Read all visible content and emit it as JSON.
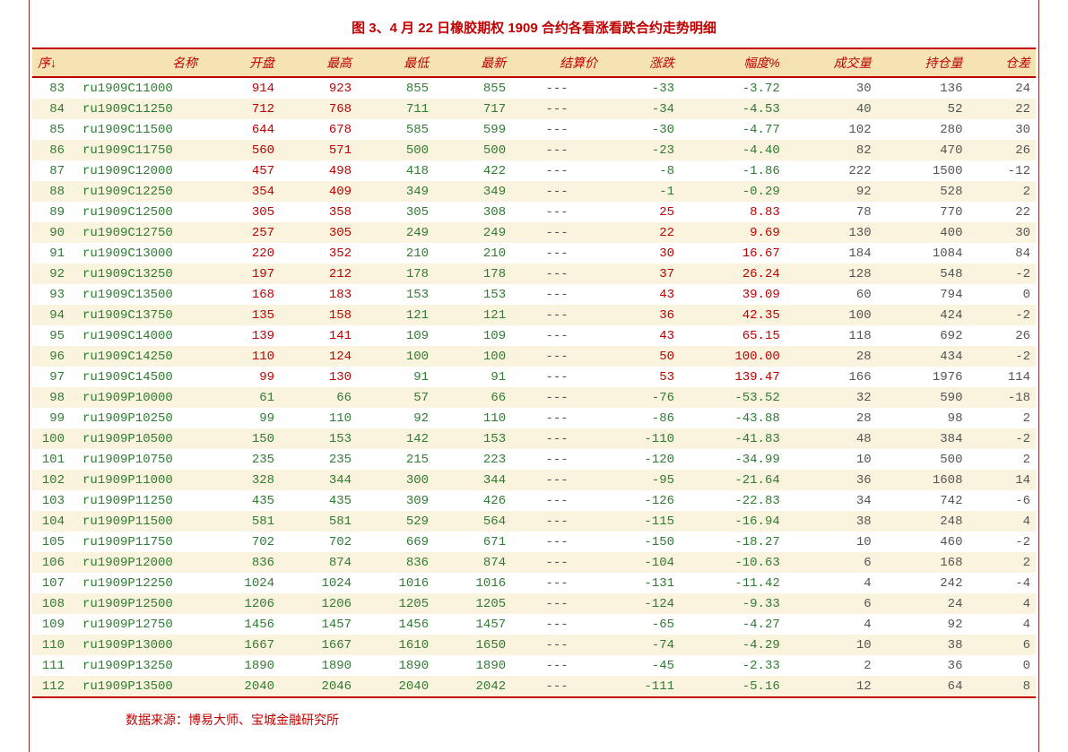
{
  "title": "图 3、4 月 22 日橡胶期权 1909 合约各看涨看跌合约走势明细",
  "source": "数据来源：博易大师、宝城金融研究所",
  "colors": {
    "title": "#c00000",
    "header_bg": "#f5e3b3",
    "header_text": "#c00000",
    "border": "#c00000",
    "row_odd": "#ffffff",
    "row_even": "#faf3dd",
    "up": "#c00000",
    "down": "#2e7d32",
    "neutral": "#555555",
    "outer_border": "#8b2a2a"
  },
  "columns": [
    "序↓",
    "名称",
    "开盘",
    "最高",
    "最低",
    "最新",
    "结算价",
    "涨跌",
    "幅度%",
    "成交量",
    "持仓量",
    "仓差"
  ],
  "column_align": [
    "left",
    "right",
    "right",
    "right",
    "right",
    "right",
    "right",
    "right",
    "right",
    "right",
    "right",
    "right"
  ],
  "rows": [
    {
      "seq": 83,
      "name": "ru1909C11000",
      "open": 914,
      "high": 923,
      "low": 855,
      "last": 855,
      "settle": "---",
      "chg": -33,
      "pct": -3.72,
      "vol": 30,
      "oi": 136,
      "oichg": 24,
      "oc": "r",
      "hc": "r",
      "lc": "g",
      "nc": "g"
    },
    {
      "seq": 84,
      "name": "ru1909C11250",
      "open": 712,
      "high": 768,
      "low": 711,
      "last": 717,
      "settle": "---",
      "chg": -34,
      "pct": -4.53,
      "vol": 40,
      "oi": 52,
      "oichg": 22,
      "oc": "r",
      "hc": "r",
      "lc": "g",
      "nc": "g"
    },
    {
      "seq": 85,
      "name": "ru1909C11500",
      "open": 644,
      "high": 678,
      "low": 585,
      "last": 599,
      "settle": "---",
      "chg": -30,
      "pct": -4.77,
      "vol": 102,
      "oi": 280,
      "oichg": 30,
      "oc": "r",
      "hc": "r",
      "lc": "g",
      "nc": "g"
    },
    {
      "seq": 86,
      "name": "ru1909C11750",
      "open": 560,
      "high": 571,
      "low": 500,
      "last": 500,
      "settle": "---",
      "chg": -23,
      "pct": -4.4,
      "vol": 82,
      "oi": 470,
      "oichg": 26,
      "oc": "r",
      "hc": "r",
      "lc": "g",
      "nc": "g"
    },
    {
      "seq": 87,
      "name": "ru1909C12000",
      "open": 457,
      "high": 498,
      "low": 418,
      "last": 422,
      "settle": "---",
      "chg": -8,
      "pct": -1.86,
      "vol": 222,
      "oi": 1500,
      "oichg": -12,
      "oc": "r",
      "hc": "r",
      "lc": "g",
      "nc": "g"
    },
    {
      "seq": 88,
      "name": "ru1909C12250",
      "open": 354,
      "high": 409,
      "low": 349,
      "last": 349,
      "settle": "---",
      "chg": -1,
      "pct": -0.29,
      "vol": 92,
      "oi": 528,
      "oichg": 2,
      "oc": "r",
      "hc": "r",
      "lc": "g",
      "nc": "g"
    },
    {
      "seq": 89,
      "name": "ru1909C12500",
      "open": 305,
      "high": 358,
      "low": 305,
      "last": 308,
      "settle": "---",
      "chg": 25,
      "pct": 8.83,
      "vol": 78,
      "oi": 770,
      "oichg": 22,
      "oc": "r",
      "hc": "r",
      "lc": "g",
      "nc": "g"
    },
    {
      "seq": 90,
      "name": "ru1909C12750",
      "open": 257,
      "high": 305,
      "low": 249,
      "last": 249,
      "settle": "---",
      "chg": 22,
      "pct": 9.69,
      "vol": 130,
      "oi": 400,
      "oichg": 30,
      "oc": "r",
      "hc": "r",
      "lc": "g",
      "nc": "g"
    },
    {
      "seq": 91,
      "name": "ru1909C13000",
      "open": 220,
      "high": 352,
      "low": 210,
      "last": 210,
      "settle": "---",
      "chg": 30,
      "pct": 16.67,
      "vol": 184,
      "oi": 1084,
      "oichg": 84,
      "oc": "r",
      "hc": "r",
      "lc": "g",
      "nc": "g"
    },
    {
      "seq": 92,
      "name": "ru1909C13250",
      "open": 197,
      "high": 212,
      "low": 178,
      "last": 178,
      "settle": "---",
      "chg": 37,
      "pct": 26.24,
      "vol": 128,
      "oi": 548,
      "oichg": -2,
      "oc": "r",
      "hc": "r",
      "lc": "g",
      "nc": "g"
    },
    {
      "seq": 93,
      "name": "ru1909C13500",
      "open": 168,
      "high": 183,
      "low": 153,
      "last": 153,
      "settle": "---",
      "chg": 43,
      "pct": 39.09,
      "vol": 60,
      "oi": 794,
      "oichg": 0,
      "oc": "r",
      "hc": "r",
      "lc": "g",
      "nc": "g"
    },
    {
      "seq": 94,
      "name": "ru1909C13750",
      "open": 135,
      "high": 158,
      "low": 121,
      "last": 121,
      "settle": "---",
      "chg": 36,
      "pct": 42.35,
      "vol": 100,
      "oi": 424,
      "oichg": -2,
      "oc": "r",
      "hc": "r",
      "lc": "g",
      "nc": "g"
    },
    {
      "seq": 95,
      "name": "ru1909C14000",
      "open": 139,
      "high": 141,
      "low": 109,
      "last": 109,
      "settle": "---",
      "chg": 43,
      "pct": 65.15,
      "vol": 118,
      "oi": 692,
      "oichg": 26,
      "oc": "r",
      "hc": "r",
      "lc": "g",
      "nc": "g"
    },
    {
      "seq": 96,
      "name": "ru1909C14250",
      "open": 110,
      "high": 124,
      "low": 100,
      "last": 100,
      "settle": "---",
      "chg": 50,
      "pct": 100.0,
      "vol": 28,
      "oi": 434,
      "oichg": -2,
      "oc": "r",
      "hc": "r",
      "lc": "g",
      "nc": "g"
    },
    {
      "seq": 97,
      "name": "ru1909C14500",
      "open": 99,
      "high": 130,
      "low": 91,
      "last": 91,
      "settle": "---",
      "chg": 53,
      "pct": 139.47,
      "vol": 166,
      "oi": 1976,
      "oichg": 114,
      "oc": "r",
      "hc": "r",
      "lc": "g",
      "nc": "g"
    },
    {
      "seq": 98,
      "name": "ru1909P10000",
      "open": 61,
      "high": 66,
      "low": 57,
      "last": 66,
      "settle": "---",
      "chg": -76,
      "pct": -53.52,
      "vol": 32,
      "oi": 590,
      "oichg": -18,
      "oc": "g",
      "hc": "g",
      "lc": "g",
      "nc": "g"
    },
    {
      "seq": 99,
      "name": "ru1909P10250",
      "open": 99,
      "high": 110,
      "low": 92,
      "last": 110,
      "settle": "---",
      "chg": -86,
      "pct": -43.88,
      "vol": 28,
      "oi": 98,
      "oichg": 2,
      "oc": "g",
      "hc": "g",
      "lc": "g",
      "nc": "g"
    },
    {
      "seq": 100,
      "name": "ru1909P10500",
      "open": 150,
      "high": 153,
      "low": 142,
      "last": 153,
      "settle": "---",
      "chg": -110,
      "pct": -41.83,
      "vol": 48,
      "oi": 384,
      "oichg": -2,
      "oc": "g",
      "hc": "g",
      "lc": "g",
      "nc": "g"
    },
    {
      "seq": 101,
      "name": "ru1909P10750",
      "open": 235,
      "high": 235,
      "low": 215,
      "last": 223,
      "settle": "---",
      "chg": -120,
      "pct": -34.99,
      "vol": 10,
      "oi": 500,
      "oichg": 2,
      "oc": "g",
      "hc": "g",
      "lc": "g",
      "nc": "g"
    },
    {
      "seq": 102,
      "name": "ru1909P11000",
      "open": 328,
      "high": 344,
      "low": 300,
      "last": 344,
      "settle": "---",
      "chg": -95,
      "pct": -21.64,
      "vol": 36,
      "oi": 1608,
      "oichg": 14,
      "oc": "g",
      "hc": "g",
      "lc": "g",
      "nc": "g"
    },
    {
      "seq": 103,
      "name": "ru1909P11250",
      "open": 435,
      "high": 435,
      "low": 309,
      "last": 426,
      "settle": "---",
      "chg": -126,
      "pct": -22.83,
      "vol": 34,
      "oi": 742,
      "oichg": -6,
      "oc": "g",
      "hc": "g",
      "lc": "g",
      "nc": "g"
    },
    {
      "seq": 104,
      "name": "ru1909P11500",
      "open": 581,
      "high": 581,
      "low": 529,
      "last": 564,
      "settle": "---",
      "chg": -115,
      "pct": -16.94,
      "vol": 38,
      "oi": 248,
      "oichg": 4,
      "oc": "g",
      "hc": "g",
      "lc": "g",
      "nc": "g"
    },
    {
      "seq": 105,
      "name": "ru1909P11750",
      "open": 702,
      "high": 702,
      "low": 669,
      "last": 671,
      "settle": "---",
      "chg": -150,
      "pct": -18.27,
      "vol": 10,
      "oi": 460,
      "oichg": -2,
      "oc": "g",
      "hc": "g",
      "lc": "g",
      "nc": "g"
    },
    {
      "seq": 106,
      "name": "ru1909P12000",
      "open": 836,
      "high": 874,
      "low": 836,
      "last": 874,
      "settle": "---",
      "chg": -104,
      "pct": -10.63,
      "vol": 6,
      "oi": 168,
      "oichg": 2,
      "oc": "g",
      "hc": "g",
      "lc": "g",
      "nc": "g"
    },
    {
      "seq": 107,
      "name": "ru1909P12250",
      "open": 1024,
      "high": 1024,
      "low": 1016,
      "last": 1016,
      "settle": "---",
      "chg": -131,
      "pct": -11.42,
      "vol": 4,
      "oi": 242,
      "oichg": -4,
      "oc": "g",
      "hc": "g",
      "lc": "g",
      "nc": "g"
    },
    {
      "seq": 108,
      "name": "ru1909P12500",
      "open": 1206,
      "high": 1206,
      "low": 1205,
      "last": 1205,
      "settle": "---",
      "chg": -124,
      "pct": -9.33,
      "vol": 6,
      "oi": 24,
      "oichg": 4,
      "oc": "g",
      "hc": "g",
      "lc": "g",
      "nc": "g"
    },
    {
      "seq": 109,
      "name": "ru1909P12750",
      "open": 1456,
      "high": 1457,
      "low": 1456,
      "last": 1457,
      "settle": "---",
      "chg": -65,
      "pct": -4.27,
      "vol": 4,
      "oi": 92,
      "oichg": 4,
      "oc": "g",
      "hc": "g",
      "lc": "g",
      "nc": "g"
    },
    {
      "seq": 110,
      "name": "ru1909P13000",
      "open": 1667,
      "high": 1667,
      "low": 1610,
      "last": 1650,
      "settle": "---",
      "chg": -74,
      "pct": -4.29,
      "vol": 10,
      "oi": 38,
      "oichg": 6,
      "oc": "g",
      "hc": "g",
      "lc": "g",
      "nc": "g"
    },
    {
      "seq": 111,
      "name": "ru1909P13250",
      "open": 1890,
      "high": 1890,
      "low": 1890,
      "last": 1890,
      "settle": "---",
      "chg": -45,
      "pct": -2.33,
      "vol": 2,
      "oi": 36,
      "oichg": 0,
      "oc": "g",
      "hc": "g",
      "lc": "g",
      "nc": "g"
    },
    {
      "seq": 112,
      "name": "ru1909P13500",
      "open": 2040,
      "high": 2046,
      "low": 2040,
      "last": 2042,
      "settle": "---",
      "chg": -111,
      "pct": -5.16,
      "vol": 12,
      "oi": 64,
      "oichg": 8,
      "oc": "g",
      "hc": "g",
      "lc": "g",
      "nc": "g"
    }
  ]
}
